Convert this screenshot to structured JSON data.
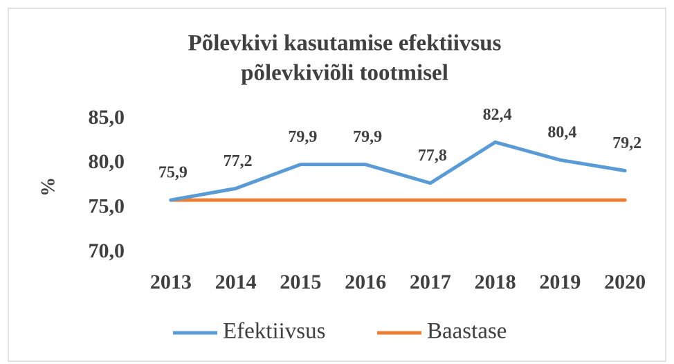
{
  "chart_data": {
    "type": "line",
    "title": [
      "Põlevkivi kasutamise efektiivsus",
      "põlevkiviõli tootmisel"
    ],
    "y_label": "%",
    "categories": [
      "2013",
      "2014",
      "2015",
      "2016",
      "2017",
      "2018",
      "2019",
      "2020"
    ],
    "series": [
      {
        "name": "Efektiivsus",
        "color": "#5b9bd5",
        "values": [
          75.9,
          77.2,
          79.9,
          79.9,
          77.8,
          82.4,
          80.4,
          79.2
        ],
        "value_labels": [
          "75,9",
          "77,2",
          "79,9",
          "79,9",
          "77,8",
          "82,4",
          "80,4",
          "79,2"
        ]
      },
      {
        "name": "Baastase",
        "color": "#ed7d31",
        "values": [
          75.9,
          75.9,
          75.9,
          75.9,
          75.9,
          75.9,
          75.9,
          75.9
        ]
      }
    ],
    "ylim": [
      70,
      85
    ],
    "yticks": [
      {
        "value": 70,
        "label": "70,0"
      },
      {
        "value": 75,
        "label": "75,0"
      },
      {
        "value": 80,
        "label": "80,0"
      },
      {
        "value": 85,
        "label": "85,0"
      }
    ],
    "grid": false,
    "legend": "bottom"
  }
}
